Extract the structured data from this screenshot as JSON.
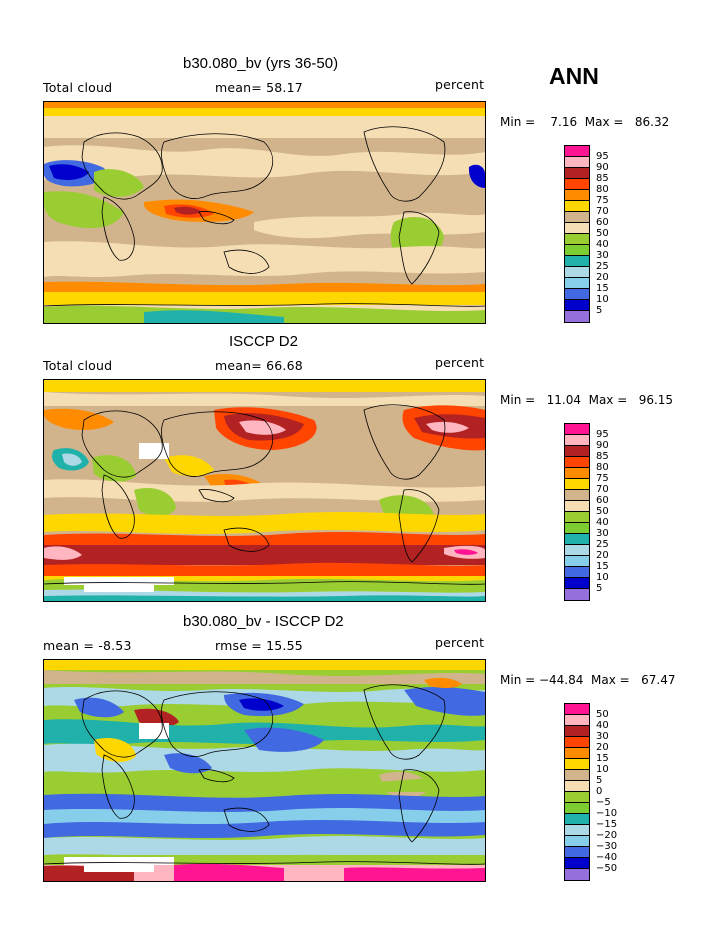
{
  "season": "ANN",
  "panels": [
    {
      "title": "b30.080_bv (yrs 36-50)",
      "left_label": "Total cloud",
      "center_label": "mean=   58.17",
      "right_label": "percent",
      "minmax": "Min =    7.16  Max =   86.32",
      "colorbar_labels": [
        "95",
        "90",
        "85",
        "80",
        "75",
        "70",
        "60",
        "50",
        "40",
        "30",
        "25",
        "20",
        "15",
        "10",
        "5"
      ]
    },
    {
      "title": "ISCCP D2",
      "left_label": "Total cloud",
      "center_label": "mean=   66.68",
      "right_label": "percent",
      "minmax": "Min =   11.04  Max =   96.15",
      "colorbar_labels": [
        "95",
        "90",
        "85",
        "80",
        "75",
        "70",
        "60",
        "50",
        "40",
        "30",
        "25",
        "20",
        "15",
        "10",
        "5"
      ]
    },
    {
      "title": "b30.080_bv - ISCCP D2",
      "left_label": "mean =   -8.53",
      "center_label": "rmse =   15.55",
      "right_label": "percent",
      "minmax": "Min = −44.84  Max =   67.47",
      "colorbar_labels": [
        "50",
        "40",
        "30",
        "20",
        "15",
        "10",
        "5",
        "0",
        "−5",
        "−10",
        "−15",
        "−20",
        "−30",
        "−40",
        "−50"
      ]
    }
  ],
  "colors": {
    "c16": "#ff1493",
    "c15": "#ffb6c1",
    "c14": "#b22222",
    "c13": "#ff4500",
    "c12": "#ff8c00",
    "c11": "#ffd700",
    "c10": "#d2b48c",
    "c9": "#f5deb3",
    "c8": "#9acd32",
    "c7": "#7ccd32",
    "c6": "#20b2aa",
    "c5": "#add8e6",
    "c4": "#87ceeb",
    "c3": "#4169e1",
    "c2": "#0000cd",
    "c1": "#9370db"
  }
}
